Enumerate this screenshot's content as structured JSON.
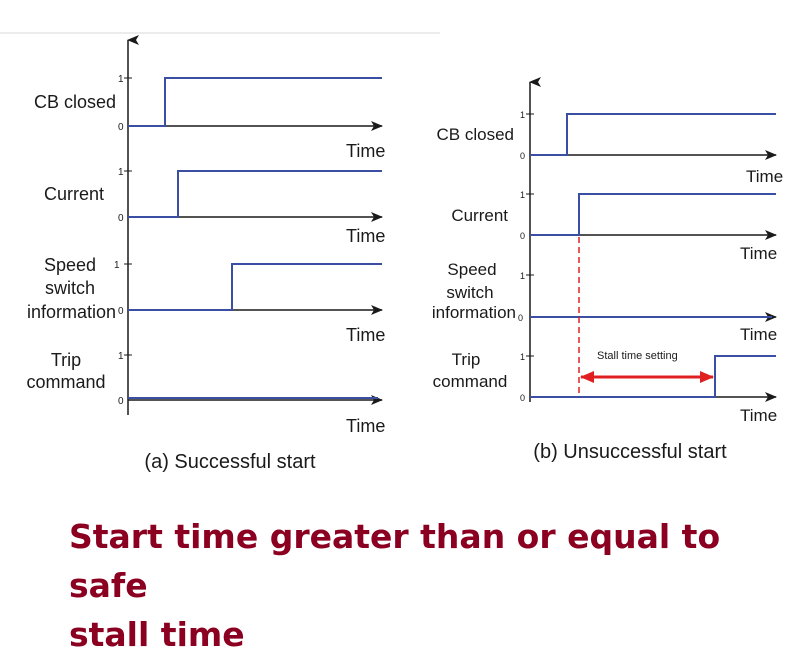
{
  "colors": {
    "signal": "#3a4fa3",
    "axis": "#1a1a1a",
    "stall_marker": "#e02020",
    "caption": "#8b0020",
    "divider": "#d9d9d9"
  },
  "panel_a": {
    "caption": "(a) Successful start",
    "rows": [
      {
        "label_lines": [
          "CB closed"
        ],
        "high": "1",
        "low": "0",
        "axis_label": "Time",
        "state": "rises"
      },
      {
        "label_lines": [
          "Current"
        ],
        "high": "1",
        "low": "0",
        "axis_label": "Time",
        "state": "rises"
      },
      {
        "label_lines": [
          "Speed",
          "switch",
          "information"
        ],
        "high": "1",
        "low": "0",
        "axis_label": "Time",
        "state": "rises"
      },
      {
        "label_lines": [
          "Trip",
          "command"
        ],
        "high": "1",
        "low": "0",
        "axis_label": "Time",
        "state": "stays low"
      }
    ]
  },
  "panel_b": {
    "caption": "(b) Unsuccessful start",
    "stall_label": "Stall time setting",
    "rows": [
      {
        "label_lines": [
          "CB closed"
        ],
        "high": "1",
        "low": "0",
        "axis_label": "Time",
        "state": "rises"
      },
      {
        "label_lines": [
          "Current"
        ],
        "high": "1",
        "low": "0",
        "axis_label": "Time",
        "state": "rises"
      },
      {
        "label_lines": [
          "Speed",
          "switch",
          "information"
        ],
        "high": "1",
        "low": "0",
        "axis_label": "Time",
        "state": "stays low"
      },
      {
        "label_lines": [
          "Trip",
          "command"
        ],
        "high": "1",
        "low": "0",
        "axis_label": "Time",
        "state": "rises after stall time"
      }
    ]
  },
  "slide": {
    "caption_line1": "Start time greater than or equal to safe",
    "caption_line2": "stall time"
  }
}
